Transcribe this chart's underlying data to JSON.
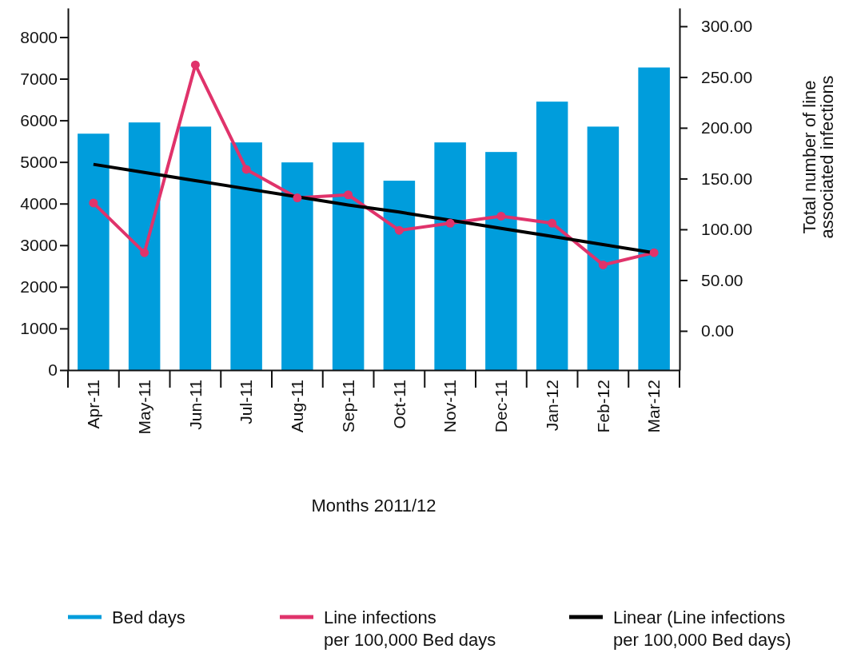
{
  "chart_data": {
    "type": "bar",
    "xlabel": "Months 2011/12",
    "y2label": "Total number of line associated infections",
    "categories": [
      "Apr-11",
      "May-11",
      "Jun-11",
      "Jul-11",
      "Aug-11",
      "Sep-11",
      "Oct-11",
      "Nov-11",
      "Dec-11",
      "Jan-12",
      "Feb-12",
      "Mar-12"
    ],
    "series": [
      {
        "name": "Bed days",
        "color": "#009ddc",
        "values": [
          5680,
          5950,
          5850,
          5470,
          4990,
          5470,
          4550,
          5470,
          5240,
          6450,
          5850,
          7270
        ]
      },
      {
        "name": "Line infections per 100,000 Bed days",
        "type": "line",
        "axis": "y2",
        "color": "#e0336b",
        "marker": "circle",
        "values": [
          126,
          77,
          262,
          159,
          131,
          134,
          99,
          106,
          113,
          106,
          65,
          77
        ]
      },
      {
        "name": "Linear (Line infections per 100,000 Bed days)",
        "type": "line",
        "axis": "y2",
        "color": "#000000",
        "values": [
          164,
          156,
          148,
          140,
          132,
          124,
          117,
          109,
          101,
          93,
          85,
          77
        ]
      }
    ],
    "ylim": [
      0,
      8700
    ],
    "yticks": [
      0,
      1000,
      2000,
      3000,
      4000,
      5000,
      6000,
      7000,
      8000
    ],
    "y2lim": [
      -38.6,
      318
    ],
    "y2ticks": [
      {
        "value": 0,
        "label": "0.00"
      },
      {
        "value": 50,
        "label": "50.00"
      },
      {
        "value": 100,
        "label": "100.00"
      },
      {
        "value": 150,
        "label": "150.00"
      },
      {
        "value": 200,
        "label": "200.00"
      },
      {
        "value": 250,
        "label": "250.00"
      },
      {
        "value": 300,
        "label": "300.00"
      }
    ],
    "legend": "bottom",
    "grid": false
  }
}
